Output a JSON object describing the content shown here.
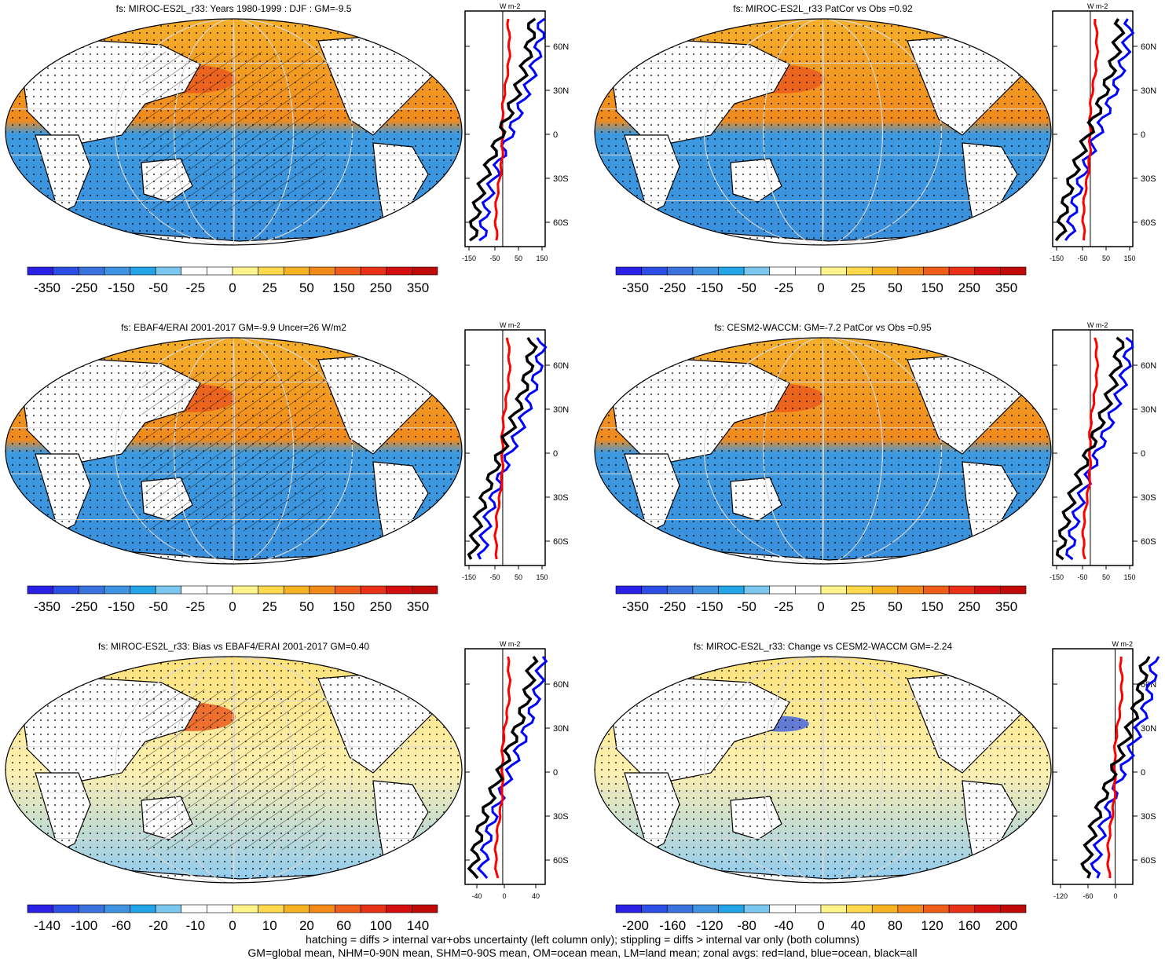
{
  "panels": [
    {
      "id": "p1",
      "title": "fs: MIROC-ES2L_r33: Years 1980-1999 : DJF : GM=-9.5",
      "hatched": true,
      "profile_unit": "W m-2",
      "profile_xticks": [
        "-150",
        "-50",
        "50",
        "150"
      ],
      "profile_yticks": [
        "60N",
        "30N",
        "0",
        "30S",
        "60S"
      ],
      "colorbar": [
        "-350",
        "-250",
        "-150",
        "-50",
        "-25",
        "0",
        "25",
        "50",
        "150",
        "250",
        "350"
      ]
    },
    {
      "id": "p2",
      "title": "fs: MIROC-ES2L_r33 PatCor vs Obs =0.92",
      "hatched": false,
      "profile_unit": "W m-2",
      "profile_xticks": [
        "-150",
        "-50",
        "50",
        "150"
      ],
      "profile_yticks": [
        "60N",
        "30N",
        "0",
        "30S",
        "60S"
      ],
      "colorbar": [
        "-350",
        "-250",
        "-150",
        "-50",
        "-25",
        "0",
        "25",
        "50",
        "150",
        "250",
        "350"
      ]
    },
    {
      "id": "p3",
      "title": "fs: EBAF4/ERAI 2001-2017 GM=-9.9 Uncer=26 W/m2",
      "hatched": true,
      "profile_unit": "W m-2",
      "profile_xticks": [
        "-150",
        "-50",
        "50",
        "150"
      ],
      "profile_yticks": [
        "60N",
        "30N",
        "0",
        "30S",
        "60S"
      ],
      "colorbar": [
        "-350",
        "-250",
        "-150",
        "-50",
        "-25",
        "0",
        "25",
        "50",
        "150",
        "250",
        "350"
      ]
    },
    {
      "id": "p4",
      "title": "fs: CESM2-WACCM: GM=-7.2 PatCor vs Obs =0.95",
      "hatched": false,
      "profile_unit": "W m-2",
      "profile_xticks": [
        "-150",
        "-50",
        "50",
        "150"
      ],
      "profile_yticks": [
        "60N",
        "30N",
        "0",
        "30S",
        "60S"
      ],
      "colorbar": [
        "-350",
        "-250",
        "-150",
        "-50",
        "-25",
        "0",
        "25",
        "50",
        "150",
        "250",
        "350"
      ]
    },
    {
      "id": "p5",
      "title": "fs: MIROC-ES2L_r33: Bias vs EBAF4/ERAI 2001-2017 GM=0.40",
      "hatched": true,
      "profile_unit": "W m-2",
      "profile_xticks": [
        "-40",
        "0",
        "40"
      ],
      "profile_yticks": [
        "60N",
        "30N",
        "0",
        "30S",
        "60S"
      ],
      "colorbar": [
        "-140",
        "-100",
        "-60",
        "-20",
        "-10",
        "0",
        "10",
        "20",
        "60",
        "100",
        "140"
      ]
    },
    {
      "id": "p6",
      "title": "fs: MIROC-ES2L_r33: Change vs CESM2-WACCM GM=-2.24",
      "hatched": false,
      "profile_unit": "W m-2",
      "profile_xticks": [
        "-120",
        "-60",
        "0"
      ],
      "profile_yticks": [
        "60N",
        "30N",
        "0",
        "30S",
        "60S"
      ],
      "colorbar": [
        "-200",
        "-160",
        "-120",
        "-80",
        "-40",
        "0",
        "40",
        "80",
        "120",
        "160",
        "200"
      ]
    }
  ],
  "colors": {
    "land": "#ffffff",
    "ocean_positive": "#f2a11f",
    "ocean_positive_strong": "#e8561c",
    "ocean_negative": "#3d9ae0",
    "ocean_negative_light": "#6cb8ee",
    "profile_land": "#ff0000",
    "profile_ocean": "#0000ff",
    "profile_all": "#000000",
    "colorbar": [
      "#2a20e6",
      "#2c4ee4",
      "#3a72de",
      "#3f93e0",
      "#22a4e6",
      "#7bc7ef",
      "#ffffff",
      "#ffffff",
      "#fff48c",
      "#ffd94c",
      "#f5b324",
      "#f28a1a",
      "#ee5d1a",
      "#e83218",
      "#d40f10",
      "#c00a0a"
    ]
  },
  "footer": {
    "line1": "hatching = diffs > internal var+obs uncertainty (left column only); stippling = diffs > internal var only (both columns)",
    "line2": "GM=global mean, NHM=0-90N mean, SHM=0-90S mean, OM=ocean mean, LM=land mean; zonal avgs: red=land, blue=ocean, black=all"
  }
}
